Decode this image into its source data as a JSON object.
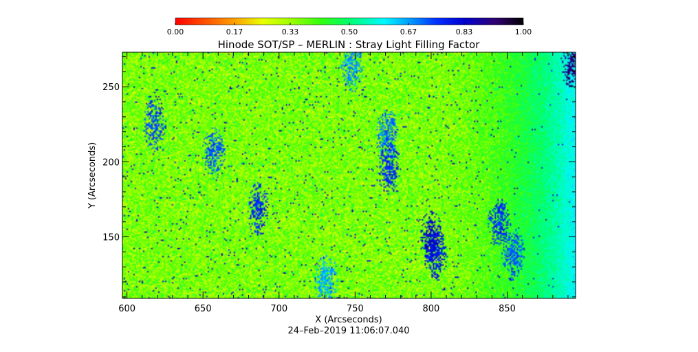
{
  "chart_data": {
    "type": "heatmap",
    "title": "Hinode SOT/SP – MERLIN : Stray Light Filling Factor",
    "xlabel": "X (Arcseconds)",
    "ylabel": "Y (Arcseconds)",
    "timestamp": "24–Feb–2019 11:06:07.040",
    "xlim": [
      597,
      895
    ],
    "ylim": [
      109,
      273
    ],
    "x_ticks": [
      600,
      650,
      700,
      750,
      800,
      850
    ],
    "y_ticks": [
      150,
      200,
      250
    ],
    "x_tick_labels": [
      "600",
      "650",
      "700",
      "750",
      "800",
      "850"
    ],
    "y_tick_labels": [
      "150",
      "200",
      "250"
    ],
    "colorbar": {
      "range": [
        0,
        1
      ],
      "ticks": [
        0.0,
        0.17,
        0.33,
        0.5,
        0.67,
        0.83,
        1.0
      ],
      "tick_labels": [
        "0.00",
        "0.17",
        "0.33",
        "0.50",
        "0.67",
        "0.83",
        "1.00"
      ],
      "colormap": [
        {
          "v": 0.0,
          "color": "#ff0000"
        },
        {
          "v": 0.17,
          "color": "#ffa000"
        },
        {
          "v": 0.25,
          "color": "#e8ff00"
        },
        {
          "v": 0.33,
          "color": "#a0ff00"
        },
        {
          "v": 0.42,
          "color": "#30ff10"
        },
        {
          "v": 0.5,
          "color": "#00ff70"
        },
        {
          "v": 0.6,
          "color": "#00f8ff"
        },
        {
          "v": 0.67,
          "color": "#00a0ff"
        },
        {
          "v": 0.75,
          "color": "#0030ff"
        },
        {
          "v": 0.83,
          "color": "#0000d0"
        },
        {
          "v": 0.92,
          "color": "#300070"
        },
        {
          "v": 1.0,
          "color": "#000000"
        }
      ]
    },
    "field": {
      "background_value": 0.36,
      "high_value_structures": [
        {
          "x": 618,
          "y": 224,
          "value": 0.78
        },
        {
          "x": 657,
          "y": 206,
          "value": 0.76
        },
        {
          "x": 686,
          "y": 169,
          "value": 0.8
        },
        {
          "x": 748,
          "y": 264,
          "value": 0.72
        },
        {
          "x": 772,
          "y": 196,
          "value": 0.8
        },
        {
          "x": 771,
          "y": 218,
          "value": 0.74
        },
        {
          "x": 800,
          "y": 150,
          "value": 0.86
        },
        {
          "x": 803,
          "y": 138,
          "value": 0.82
        },
        {
          "x": 845,
          "y": 160,
          "value": 0.8
        },
        {
          "x": 854,
          "y": 138,
          "value": 0.76
        },
        {
          "x": 893,
          "y": 266,
          "value": 0.95
        },
        {
          "x": 731,
          "y": 121,
          "value": 0.7
        }
      ],
      "limb_edge_value": 0.6
    }
  }
}
